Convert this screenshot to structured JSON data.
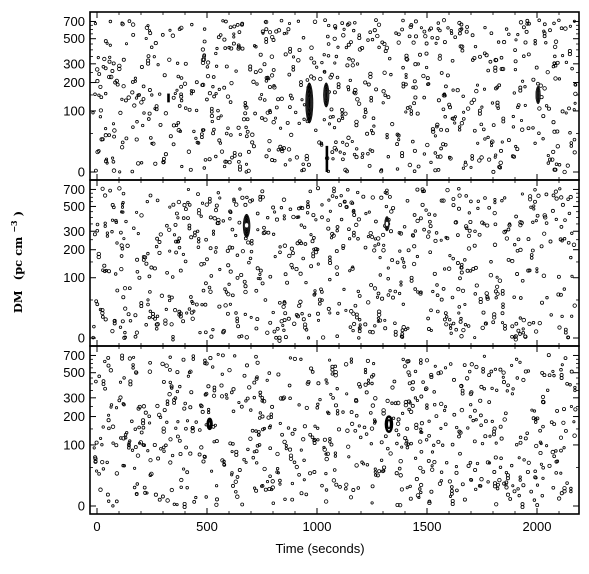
{
  "chart_data": {
    "type": "scatter",
    "xlabel": "Time (seconds)",
    "ylabel": {
      "main": "DM",
      "unit_prefix": "(pc cm",
      "unit_exponent": "−3",
      "unit_suffix": ")"
    },
    "xlim": [
      -80,
      2190
    ],
    "x_ticks": [
      0,
      500,
      1000,
      1500,
      2000
    ],
    "x_tick_labels": [
      "0",
      "500",
      "1000",
      "1500",
      "2000"
    ],
    "dm_scale": "log(DM+50)",
    "dm_range": [
      0,
      800
    ],
    "y_ticks": [
      0,
      100,
      200,
      300,
      500,
      700
    ],
    "y_tick_labels": [
      "0",
      "100",
      "200",
      "300",
      "500",
      "700"
    ],
    "panels": [
      {
        "background_seed": 11,
        "background_count": 760,
        "features": [
          {
            "kind": "blob",
            "t": 965,
            "dm": 125,
            "t_halfwidth": 18,
            "dm_low": 70,
            "dm_high": 200
          },
          {
            "kind": "blob",
            "t": 1042,
            "dm": 150,
            "t_halfwidth": 14,
            "dm_low": 110,
            "dm_high": 200
          },
          {
            "kind": "blob",
            "t": 2005,
            "dm": 150,
            "t_halfwidth": 12,
            "dm_low": 120,
            "dm_high": 185
          },
          {
            "kind": "streak",
            "t": 1045,
            "dm_low": 0,
            "dm_high": 30
          },
          {
            "kind": "streak",
            "t": 325,
            "dm_low": 125,
            "dm_high": 155
          }
        ]
      },
      {
        "background_seed": 23,
        "background_count": 740,
        "features": [
          {
            "kind": "blob",
            "t": 680,
            "dm": 340,
            "t_halfwidth": 17,
            "dm_low": 260,
            "dm_high": 430
          },
          {
            "kind": "blob",
            "t": 1318,
            "dm": 350,
            "t_halfwidth": 12,
            "dm_low": 300,
            "dm_high": 410
          }
        ]
      },
      {
        "background_seed": 37,
        "background_count": 720,
        "features": [
          {
            "kind": "ring",
            "t": 512,
            "dm": 170,
            "t_halfwidth": 9,
            "dm_low": 150,
            "dm_high": 190
          },
          {
            "kind": "ring",
            "t": 1327,
            "dm": 170,
            "t_halfwidth": 14,
            "dm_low": 140,
            "dm_high": 200
          }
        ]
      }
    ]
  }
}
